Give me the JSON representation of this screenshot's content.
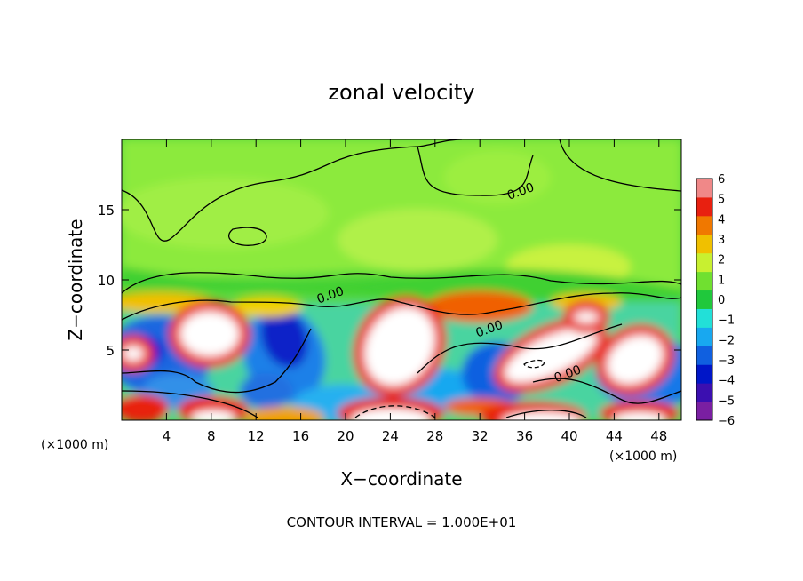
{
  "chart_data": {
    "type": "heatmap",
    "title": "zonal velocity",
    "xlabel": "X−coordinate",
    "ylabel": "Z−coordinate",
    "x_units_left": "(×1000 m)",
    "x_units_right": "(×1000 m)",
    "xlim": [
      0,
      50
    ],
    "ylim": [
      0,
      20
    ],
    "x_ticks": [
      4,
      8,
      12,
      16,
      20,
      24,
      28,
      32,
      36,
      40,
      44,
      48
    ],
    "x_tick_labels": [
      "4",
      "8",
      "12",
      "16",
      "20",
      "24",
      "28",
      "32",
      "36",
      "40",
      "44",
      "48"
    ],
    "y_ticks": [
      5,
      10,
      15
    ],
    "y_tick_labels": [
      "5",
      "10",
      "15"
    ],
    "colorbar": {
      "min": -6,
      "max": 6,
      "ticks": [
        6,
        5,
        4,
        3,
        2,
        1,
        0,
        -1,
        -2,
        -3,
        -4,
        -5,
        -6
      ],
      "tick_labels": [
        "6",
        "5",
        "4",
        "3",
        "2",
        "1",
        "0",
        "−1",
        "−2",
        "−3",
        "−4",
        "−5",
        "−6"
      ],
      "colors": [
        "#7a1fa2",
        "#3b0fb0",
        "#0016c8",
        "#1060e0",
        "#18a8f0",
        "#22e0d8",
        "#20c83c",
        "#70e030",
        "#c8f030",
        "#f0c000",
        "#f07800",
        "#e82010",
        "#f08888"
      ]
    },
    "contour_labels": [
      {
        "text": "0.00",
        "x": 34.6,
        "z": 15.7
      },
      {
        "text": "0.00",
        "x": 17.6,
        "z": 8.3
      },
      {
        "text": "0.00",
        "x": 31.8,
        "z": 5.9
      },
      {
        "text": "0.00",
        "x": 38.8,
        "z": 2.7
      }
    ],
    "footer": "CONTOUR INTERVAL = 1.000E+01"
  }
}
